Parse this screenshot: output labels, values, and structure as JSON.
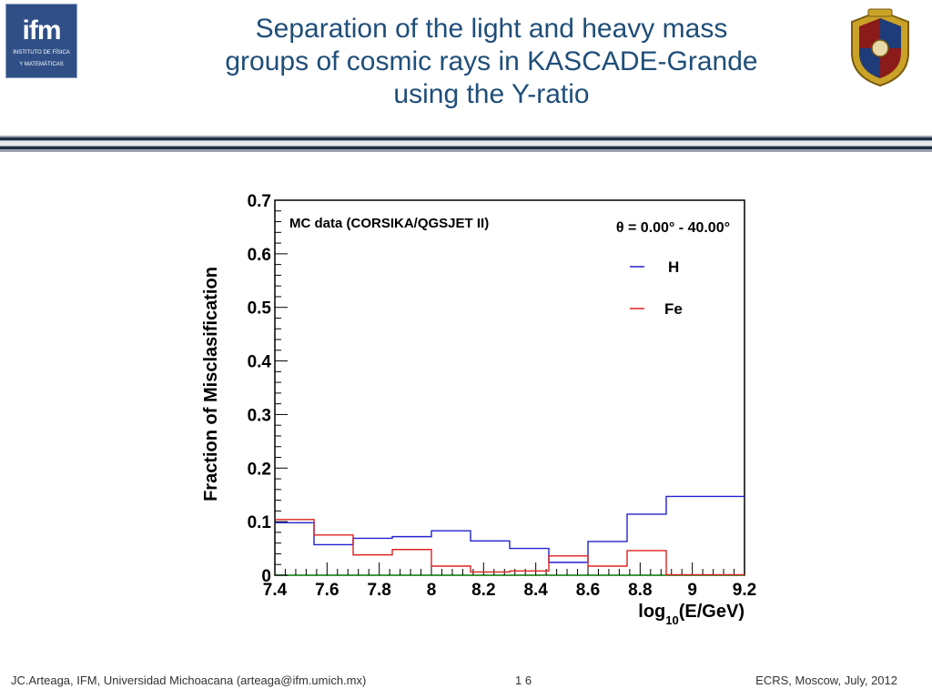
{
  "header": {
    "title_lines": [
      "Separation of the light and heavy mass",
      "groups of cosmic rays in KASCADE-Grande",
      "using the Y-ratio"
    ],
    "logo_left": {
      "big": "ifm",
      "small_1": "INSTITUTO DE FÍSICA",
      "small_2": "Y MATEMÁTICAS"
    },
    "accent_color": "#1f4e79"
  },
  "footer": {
    "author": "JC.Arteaga, IFM,  Universidad Michoacana  (arteaga@ifm.umich.mx)",
    "page": "1 6",
    "event": "ECRS, Moscow, July, 2012"
  },
  "chart_data": {
    "type": "line",
    "subtype": "step-histogram",
    "annotation": "MC data (CORSIKA/QGSJET II)",
    "theta_label": "θ = 0.00° - 40.00°",
    "ylabel": "Fraction of Misclasification",
    "xlabel_main": "log",
    "xlabel_sub": "10",
    "xlabel_tail": "(E/GeV)",
    "xlim": [
      7.4,
      9.2
    ],
    "ylim": [
      0,
      0.7
    ],
    "x_ticks": [
      "7.4",
      "7.6",
      "7.8",
      "8",
      "8.2",
      "8.4",
      "8.6",
      "8.8",
      "9",
      "9.2"
    ],
    "x_tick_values": [
      7.4,
      7.6,
      7.8,
      8.0,
      8.2,
      8.4,
      8.6,
      8.8,
      9.0,
      9.2
    ],
    "y_ticks": [
      "0",
      "0.1",
      "0.2",
      "0.3",
      "0.4",
      "0.5",
      "0.6",
      "0.7"
    ],
    "y_tick_values": [
      0,
      0.1,
      0.2,
      0.3,
      0.4,
      0.5,
      0.6,
      0.7
    ],
    "bin_edges": [
      7.4,
      7.55,
      7.7,
      7.85,
      8.0,
      8.15,
      8.3,
      8.45,
      8.6,
      8.75,
      8.9,
      9.05,
      9.2
    ],
    "series": [
      {
        "name": "H",
        "color": "#2222cc",
        "values": [
          0.098,
          0.057,
          0.069,
          0.072,
          0.083,
          0.064,
          0.05,
          0.024,
          0.063,
          0.114,
          0.147,
          0.147
        ]
      },
      {
        "name": "Fe",
        "color": "#dd2222",
        "values": [
          0.104,
          0.075,
          0.038,
          0.048,
          0.017,
          0.006,
          0.008,
          0.036,
          0.017,
          0.046,
          0.001,
          0.001
        ]
      }
    ],
    "zero_line_color": "#2ca02c",
    "grid": false,
    "legend_position": "top-right"
  }
}
